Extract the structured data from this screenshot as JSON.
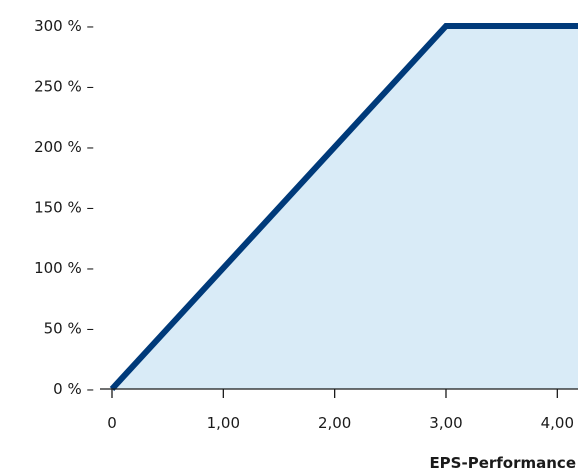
{
  "chart_data": {
    "type": "area",
    "title": "",
    "xlabel": "EPS-Performance",
    "ylabel": "",
    "x_ticks": [
      {
        "value": 0,
        "label": "0"
      },
      {
        "value": 1,
        "label": "1,00"
      },
      {
        "value": 2,
        "label": "2,00"
      },
      {
        "value": 3,
        "label": "3,00"
      },
      {
        "value": 4,
        "label": "4,00"
      }
    ],
    "y_ticks": [
      {
        "value": 0,
        "label": "0 % –"
      },
      {
        "value": 50,
        "label": "50 % –"
      },
      {
        "value": 100,
        "label": "100 % –"
      },
      {
        "value": 150,
        "label": "150 % –"
      },
      {
        "value": 200,
        "label": "200 % –"
      },
      {
        "value": 250,
        "label": "250 % –"
      },
      {
        "value": 300,
        "label": "300 % –"
      }
    ],
    "xlim": [
      -0.1,
      4.2
    ],
    "ylim": [
      0,
      300
    ],
    "series": [
      {
        "x": [
          0,
          3,
          4.2
        ],
        "y": [
          0,
          300,
          300
        ],
        "line_color": "#003a7a",
        "fill_color": "#d9ebf7"
      }
    ],
    "grid": false,
    "legend": "none"
  }
}
